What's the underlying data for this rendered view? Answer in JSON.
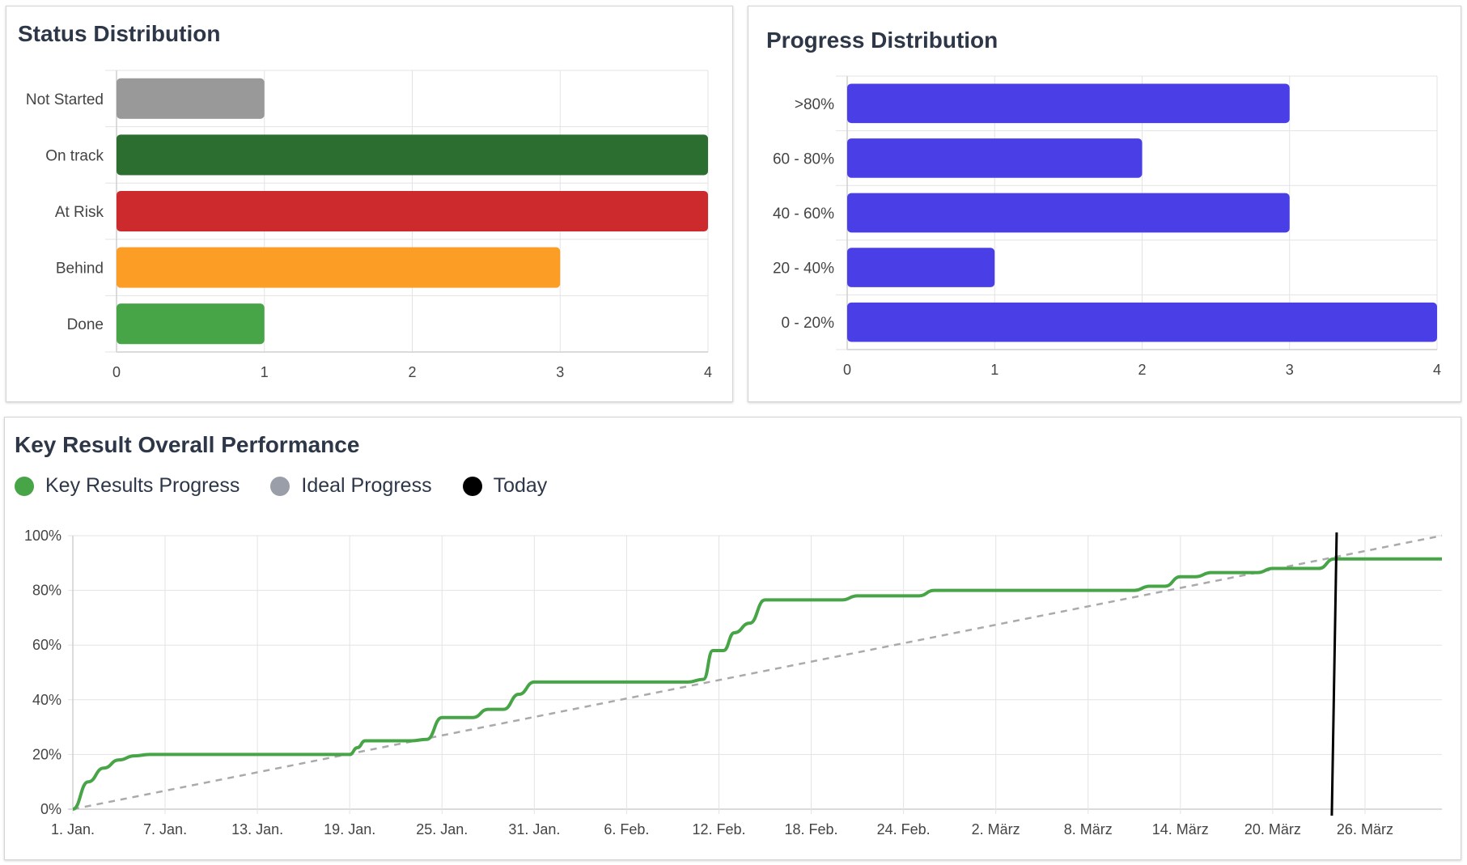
{
  "status_card": {
    "title": "Status Distribution"
  },
  "progress_card": {
    "title": "Progress Distribution"
  },
  "performance_card": {
    "title": "Key Result Overall Performance",
    "legend": [
      {
        "label": "Key Results Progress",
        "color": "#47a447"
      },
      {
        "label": "Ideal Progress",
        "color": "#9a9ea8"
      },
      {
        "label": "Today",
        "color": "#000000"
      }
    ]
  },
  "chart_data": [
    {
      "type": "bar",
      "orientation": "horizontal",
      "title": "Status Distribution",
      "categories": [
        "Not Started",
        "On track",
        "At Risk",
        "Behind",
        "Done"
      ],
      "values": [
        1,
        4,
        4,
        3,
        1
      ],
      "colors": [
        "#999999",
        "#2c6e2f",
        "#cd2a2d",
        "#fc9d25",
        "#47a447"
      ],
      "xlim": [
        0,
        4
      ],
      "xticks": [
        0,
        1,
        2,
        3,
        4
      ],
      "grid": true
    },
    {
      "type": "bar",
      "orientation": "horizontal",
      "title": "Progress Distribution",
      "categories": [
        ">80%",
        "60 - 80%",
        "40 - 60%",
        "20 - 40%",
        "0 - 20%"
      ],
      "values": [
        3,
        2,
        3,
        1,
        4
      ],
      "colors": [
        "#4a3ee6",
        "#4a3ee6",
        "#4a3ee6",
        "#4a3ee6",
        "#4a3ee6"
      ],
      "xlim": [
        0,
        4
      ],
      "xticks": [
        0,
        1,
        2,
        3,
        4
      ],
      "grid": true
    },
    {
      "type": "line",
      "title": "Key Result Overall Performance",
      "xlabel": "",
      "ylabel": "",
      "x_start_day": 0,
      "x_end_day": 89,
      "xticks": [
        {
          "day": 0,
          "label": "1. Jan."
        },
        {
          "day": 6,
          "label": "7. Jan."
        },
        {
          "day": 12,
          "label": "13. Jan."
        },
        {
          "day": 18,
          "label": "19. Jan."
        },
        {
          "day": 24,
          "label": "25. Jan."
        },
        {
          "day": 30,
          "label": "31. Jan."
        },
        {
          "day": 36,
          "label": "6. Feb."
        },
        {
          "day": 42,
          "label": "12. Feb."
        },
        {
          "day": 48,
          "label": "18. Feb."
        },
        {
          "day": 54,
          "label": "24. Feb."
        },
        {
          "day": 60,
          "label": "2. März"
        },
        {
          "day": 66,
          "label": "8. März"
        },
        {
          "day": 72,
          "label": "14. März"
        },
        {
          "day": 78,
          "label": "20. März"
        },
        {
          "day": 84,
          "label": "26. März"
        }
      ],
      "yticks": [
        {
          "value": 0,
          "label": "0%"
        },
        {
          "value": 20,
          "label": "20%"
        },
        {
          "value": 40,
          "label": "40%"
        },
        {
          "value": 60,
          "label": "60%"
        },
        {
          "value": 80,
          "label": "80%"
        },
        {
          "value": 100,
          "label": "100%"
        }
      ],
      "ylim": [
        0,
        100
      ],
      "today_day": 82,
      "series": [
        {
          "name": "Key Results Progress",
          "color": "#47a447",
          "points": [
            [
              0,
              0
            ],
            [
              1,
              10
            ],
            [
              2,
              15
            ],
            [
              3,
              18
            ],
            [
              4,
              19.5
            ],
            [
              5,
              20
            ],
            [
              17,
              20
            ],
            [
              18,
              20
            ],
            [
              18.5,
              22.5
            ],
            [
              19,
              25
            ],
            [
              22,
              25
            ],
            [
              23,
              25.5
            ],
            [
              24,
              33.5
            ],
            [
              25,
              33.5
            ],
            [
              26,
              33.5
            ],
            [
              27,
              36.5
            ],
            [
              28,
              36.5
            ],
            [
              29,
              42
            ],
            [
              30,
              46.5
            ],
            [
              40,
              46.5
            ],
            [
              41,
              47.5
            ],
            [
              41.6,
              58
            ],
            [
              42.3,
              58
            ],
            [
              43,
              64.5
            ],
            [
              44,
              68
            ],
            [
              45,
              76.5
            ],
            [
              50,
              76.5
            ],
            [
              51,
              78
            ],
            [
              55,
              78
            ],
            [
              56,
              80
            ],
            [
              69,
              80
            ],
            [
              70,
              81.5
            ],
            [
              71,
              81.5
            ],
            [
              72,
              85
            ],
            [
              73,
              85
            ],
            [
              74,
              86.5
            ],
            [
              77,
              86.5
            ],
            [
              78,
              88
            ],
            [
              81,
              88
            ],
            [
              82,
              91.5
            ],
            [
              89,
              91.5
            ]
          ]
        },
        {
          "name": "Ideal Progress",
          "color": "#aaaaaa",
          "dashed": true,
          "points": [
            [
              0,
              0
            ],
            [
              89,
              100
            ]
          ]
        }
      ]
    }
  ]
}
